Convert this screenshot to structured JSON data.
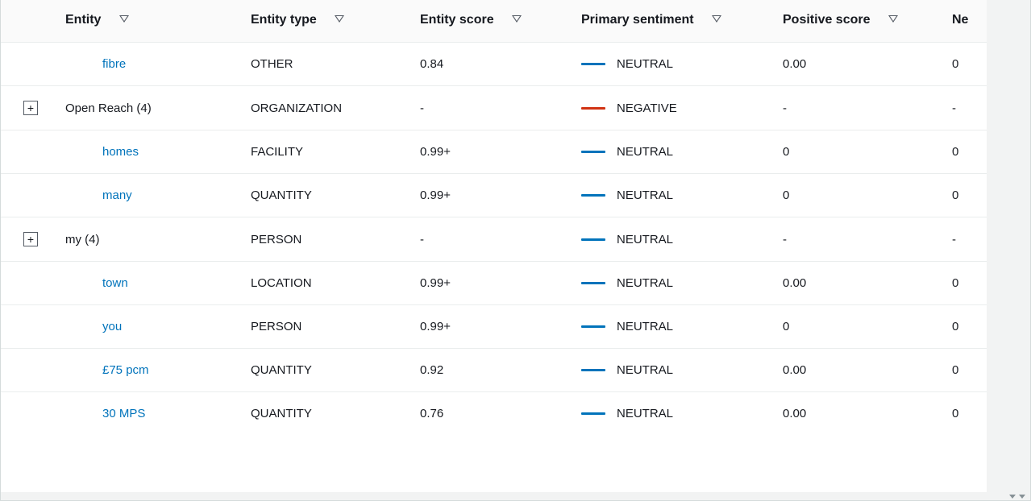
{
  "colors": {
    "link": "#0073bb",
    "border": "#eaeded",
    "header_bg": "#fafafa",
    "text": "#16191f",
    "sentiment_neutral_bar": "#0073bb",
    "sentiment_negative_bar": "#d13212",
    "scrollbar": "#f2f3f3"
  },
  "columns": {
    "entity": "Entity",
    "type": "Entity type",
    "score": "Entity score",
    "sentiment": "Primary sentiment",
    "positive": "Positive score",
    "negative_partial": "Ne"
  },
  "rows": [
    {
      "expand": null,
      "link": true,
      "entity": "fibre",
      "type": "OTHER",
      "score": "0.84",
      "sentiment": "NEUTRAL",
      "positive": "0.00",
      "negative": "0"
    },
    {
      "expand": "+",
      "link": false,
      "entity": "Open Reach (4)",
      "type": "ORGANIZATION",
      "score": "-",
      "sentiment": "NEGATIVE",
      "positive": "-",
      "negative": "-"
    },
    {
      "expand": null,
      "link": true,
      "entity": "homes",
      "type": "FACILITY",
      "score": "0.99+",
      "sentiment": "NEUTRAL",
      "positive": "0",
      "negative": "0"
    },
    {
      "expand": null,
      "link": true,
      "entity": "many",
      "type": "QUANTITY",
      "score": "0.99+",
      "sentiment": "NEUTRAL",
      "positive": "0",
      "negative": "0"
    },
    {
      "expand": "+",
      "link": false,
      "entity": "my (4)",
      "type": "PERSON",
      "score": "-",
      "sentiment": "NEUTRAL",
      "positive": "-",
      "negative": "-"
    },
    {
      "expand": null,
      "link": true,
      "entity": "town",
      "type": "LOCATION",
      "score": "0.99+",
      "sentiment": "NEUTRAL",
      "positive": "0.00",
      "negative": "0"
    },
    {
      "expand": null,
      "link": true,
      "entity": "you",
      "type": "PERSON",
      "score": "0.99+",
      "sentiment": "NEUTRAL",
      "positive": "0",
      "negative": "0"
    },
    {
      "expand": null,
      "link": true,
      "entity": "£75 pcm",
      "type": "QUANTITY",
      "score": "0.92",
      "sentiment": "NEUTRAL",
      "positive": "0.00",
      "negative": "0"
    },
    {
      "expand": null,
      "link": true,
      "entity": "30 MPS",
      "type": "QUANTITY",
      "score": "0.76",
      "sentiment": "NEUTRAL",
      "positive": "0.00",
      "negative": "0"
    }
  ]
}
